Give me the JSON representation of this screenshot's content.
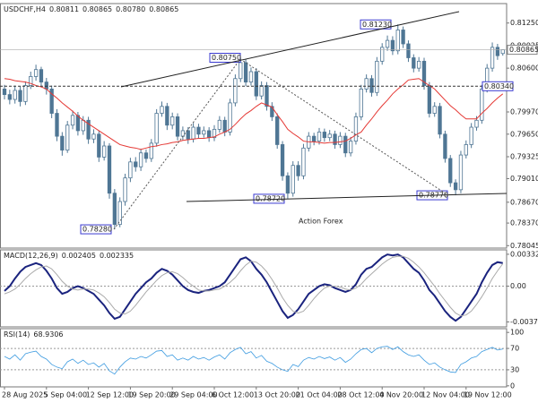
{
  "time_axis": {
    "categories": [
      "28 Aug 2025",
      null,
      null,
      null,
      null,
      null,
      null,
      null,
      "5 Sep 04:00",
      null,
      null,
      null,
      null,
      null,
      null,
      null,
      "12 Sep 12:00",
      null,
      null,
      null,
      null,
      null,
      null,
      null,
      "19 Sep 20:00",
      null,
      null,
      null,
      null,
      null,
      null,
      null,
      "29 Sep 04:00",
      null,
      null,
      null,
      null,
      null,
      null,
      null,
      "6 Oct 12:00",
      null,
      null,
      null,
      null,
      null,
      null,
      null,
      "13 Oct 20:00",
      null,
      null,
      null,
      null,
      null,
      null,
      null,
      "21 Oct 04:00",
      null,
      null,
      null,
      null,
      null,
      null,
      null,
      "28 Oct 12:00",
      null,
      null,
      null,
      null,
      null,
      null,
      null,
      "4 Nov 20:00",
      null,
      null,
      null,
      null,
      null,
      null,
      null,
      "12 Nov 04:00",
      null,
      null,
      null,
      null,
      null,
      null,
      null,
      "19 Nov 12:00",
      null,
      null,
      null,
      null,
      null,
      null,
      null
    ]
  },
  "chart_data": [
    {
      "type": "candlestick",
      "title": "USDCHF,H4",
      "header_values": [
        "0.80811",
        "0.80865",
        "0.80780",
        "0.80865"
      ],
      "watermark": "Action Forex",
      "color": "#4f7694",
      "ylim": [
        0.7801,
        0.8153
      ],
      "yticks": [
        {
          "value": 0.8125,
          "label": "0.81250"
        },
        0.80925,
        {
          "value": 0.806,
          "label": "0.80600"
        },
        {
          "value": 0.7997,
          "label": "0.79970"
        },
        {
          "value": 0.7965,
          "label": "0.79650"
        },
        0.79325,
        {
          "value": 0.7901,
          "label": "0.79010"
        },
        {
          "value": 0.7867,
          "label": "0.78670"
        },
        {
          "value": 0.7837,
          "label": "0.78370"
        },
        0.78045
      ],
      "open": [
        0.803,
        0.8022,
        0.8015,
        0.8028,
        0.8012,
        0.8035,
        0.8048,
        0.8058,
        0.804,
        0.803,
        0.7995,
        0.7962,
        0.7942,
        0.7978,
        0.7992,
        0.797,
        0.7985,
        0.7958,
        0.7965,
        0.7932,
        0.7948,
        0.788,
        0.7835,
        0.7868,
        0.7902,
        0.7925,
        0.7918,
        0.7938,
        0.793,
        0.7952,
        0.7995,
        0.8005,
        0.7978,
        0.799,
        0.7962,
        0.797,
        0.7958,
        0.7975,
        0.7965,
        0.797,
        0.796,
        0.7972,
        0.7985,
        0.7968,
        0.801,
        0.8045,
        0.8068,
        0.804,
        0.8055,
        0.802,
        0.8035,
        0.8005,
        0.799,
        0.795,
        0.7905,
        0.788,
        0.792,
        0.7905,
        0.7945,
        0.7962,
        0.7955,
        0.7968,
        0.796,
        0.7965,
        0.795,
        0.7962,
        0.7938,
        0.7955,
        0.799,
        0.803,
        0.8045,
        0.8025,
        0.807,
        0.809,
        0.81,
        0.8085,
        0.8115,
        0.8095,
        0.8075,
        0.806,
        0.807,
        0.8035,
        0.7995,
        0.8005,
        0.7965,
        0.793,
        0.7895,
        0.7885,
        0.7935,
        0.795,
        0.7975,
        0.7985,
        0.803,
        0.806,
        0.809,
        0.80811
      ],
      "high": [
        0.8036,
        0.8029,
        0.8035,
        0.8034,
        0.8041,
        0.8055,
        0.8065,
        0.8062,
        0.8046,
        0.8035,
        0.8001,
        0.7968,
        0.7984,
        0.7999,
        0.7997,
        0.7991,
        0.799,
        0.7972,
        0.797,
        0.7955,
        0.7952,
        0.7886,
        0.7874,
        0.7908,
        0.7931,
        0.7932,
        0.7944,
        0.7943,
        0.7958,
        0.8001,
        0.8012,
        0.801,
        0.7996,
        0.7995,
        0.7976,
        0.7975,
        0.7981,
        0.798,
        0.7976,
        0.7975,
        0.7978,
        0.7991,
        0.799,
        0.8016,
        0.8051,
        0.8075,
        0.8073,
        0.8061,
        0.806,
        0.8041,
        0.804,
        0.8011,
        0.7995,
        0.7955,
        0.791,
        0.7926,
        0.7926,
        0.7951,
        0.7968,
        0.7967,
        0.7974,
        0.7973,
        0.7971,
        0.797,
        0.7968,
        0.7967,
        0.7961,
        0.7996,
        0.8036,
        0.8051,
        0.805,
        0.8076,
        0.8096,
        0.8107,
        0.8106,
        0.8123,
        0.812,
        0.81,
        0.808,
        0.8076,
        0.8075,
        0.804,
        0.8011,
        0.801,
        0.797,
        0.7935,
        0.79,
        0.7941,
        0.7956,
        0.7981,
        0.7991,
        0.8036,
        0.8066,
        0.8097,
        0.8095,
        0.80865
      ],
      "low": [
        0.8015,
        0.8008,
        0.8009,
        0.8005,
        0.8007,
        0.803,
        0.8042,
        0.8033,
        0.8022,
        0.7988,
        0.7955,
        0.7934,
        0.7938,
        0.7972,
        0.7963,
        0.7964,
        0.7951,
        0.7952,
        0.7925,
        0.7927,
        0.7872,
        0.7828,
        0.7831,
        0.7862,
        0.7896,
        0.7911,
        0.7912,
        0.7924,
        0.7925,
        0.7947,
        0.799,
        0.7971,
        0.7972,
        0.7956,
        0.7956,
        0.7951,
        0.7953,
        0.7959,
        0.796,
        0.7954,
        0.7955,
        0.7967,
        0.7962,
        0.7963,
        0.8005,
        0.804,
        0.8034,
        0.8035,
        0.8014,
        0.8015,
        0.7999,
        0.7984,
        0.7944,
        0.7898,
        0.7872,
        0.7875,
        0.7898,
        0.79,
        0.794,
        0.7949,
        0.795,
        0.7954,
        0.7955,
        0.7944,
        0.7945,
        0.7932,
        0.7933,
        0.795,
        0.7985,
        0.8025,
        0.8019,
        0.802,
        0.8065,
        0.8085,
        0.8079,
        0.808,
        0.8089,
        0.8069,
        0.8054,
        0.8055,
        0.8029,
        0.7989,
        0.799,
        0.7959,
        0.7924,
        0.7889,
        0.7877,
        0.788,
        0.793,
        0.7945,
        0.797,
        0.798,
        0.8025,
        0.8055,
        0.8072,
        0.8078
      ],
      "close": [
        0.8022,
        0.8015,
        0.8028,
        0.8012,
        0.8035,
        0.8048,
        0.8058,
        0.804,
        0.803,
        0.7995,
        0.7962,
        0.7942,
        0.7978,
        0.7992,
        0.797,
        0.7985,
        0.7958,
        0.7965,
        0.7932,
        0.7948,
        0.788,
        0.7835,
        0.7868,
        0.7902,
        0.7925,
        0.7918,
        0.7938,
        0.793,
        0.7952,
        0.7995,
        0.8005,
        0.7978,
        0.799,
        0.7962,
        0.797,
        0.7958,
        0.7975,
        0.7965,
        0.797,
        0.796,
        0.7972,
        0.7985,
        0.7968,
        0.801,
        0.8045,
        0.8068,
        0.804,
        0.8055,
        0.802,
        0.8035,
        0.8005,
        0.799,
        0.795,
        0.7905,
        0.788,
        0.792,
        0.7905,
        0.7945,
        0.7962,
        0.7955,
        0.7968,
        0.796,
        0.7965,
        0.795,
        0.7962,
        0.7938,
        0.7955,
        0.799,
        0.803,
        0.8045,
        0.8025,
        0.807,
        0.809,
        0.81,
        0.8085,
        0.8115,
        0.8095,
        0.8075,
        0.806,
        0.807,
        0.8035,
        0.7995,
        0.8005,
        0.7965,
        0.793,
        0.7895,
        0.7885,
        0.7935,
        0.795,
        0.7975,
        0.7985,
        0.803,
        0.806,
        0.809,
        0.8078,
        0.80865
      ],
      "ma": {
        "color": "#e53935",
        "values": [
          0.8045,
          0.8044,
          0.8042,
          0.8041,
          0.804,
          0.8038,
          0.8035,
          0.8033,
          0.803,
          0.8023,
          0.8017,
          0.801,
          0.8004,
          0.7998,
          0.7991,
          0.7985,
          0.798,
          0.7975,
          0.797,
          0.7965,
          0.796,
          0.7955,
          0.795,
          0.7948,
          0.7946,
          0.7945,
          0.7943,
          0.7945,
          0.7947,
          0.7948,
          0.795,
          0.7951,
          0.7953,
          0.7954,
          0.7956,
          0.7957,
          0.7958,
          0.7959,
          0.7959,
          0.796,
          0.7961,
          0.7965,
          0.7968,
          0.7972,
          0.7979,
          0.7987,
          0.7994,
          0.7999,
          0.8005,
          0.801,
          0.8007,
          0.8004,
          0.7993,
          0.7983,
          0.7972,
          0.7966,
          0.7961,
          0.7955,
          0.7954,
          0.7954,
          0.7953,
          0.7952,
          0.7953,
          0.7953,
          0.7954,
          0.7955,
          0.7959,
          0.7964,
          0.7968,
          0.7978,
          0.7987,
          0.7997,
          0.8006,
          0.8014,
          0.8023,
          0.803,
          0.8036,
          0.8043,
          0.8044,
          0.8045,
          0.804,
          0.8035,
          0.803,
          0.8022,
          0.8014,
          0.8006,
          0.8,
          0.7993,
          0.7987,
          0.7987,
          0.7987,
          0.7995,
          0.8002,
          0.801,
          0.8017,
          0.8023
        ]
      },
      "annotations": [
        {
          "value": 0.8075,
          "label": "0.80750"
        },
        {
          "value": 0.8123,
          "label": "0.81230"
        },
        {
          "value": 0.7828,
          "label": "0.78280"
        },
        {
          "value": 0.7872,
          "label": "0.78720"
        },
        {
          "value": 0.7877,
          "label": "0.78770"
        }
      ],
      "level": {
        "value": 0.8034,
        "label": "0.80340"
      },
      "current_price": {
        "value": 0.80865,
        "label": "0.80865"
      }
    },
    {
      "type": "macd",
      "title": "MACD(12,26,9)",
      "ylim": [
        -0.00424,
        0.00378
      ],
      "yticks": [
        0.003321,
        {
          "value": 0,
          "label": "0.00"
        },
        -0.003723
      ],
      "levels": [
        0
      ],
      "series": [
        {
          "color": "#1a237e",
          "values": [
            -0.0005,
            0.0,
            0.0008,
            0.0015,
            0.002,
            0.0022,
            0.0024,
            0.0022,
            0.0016,
            0.0008,
            -0.0002,
            -0.0008,
            -0.0006,
            -0.0002,
            0.0,
            -0.0002,
            -0.0005,
            -0.0008,
            -0.0014,
            -0.002,
            -0.0028,
            -0.0034,
            -0.0032,
            -0.0024,
            -0.0016,
            -0.0008,
            -0.0002,
            0.0004,
            0.0008,
            0.0014,
            0.0018,
            0.0016,
            0.0012,
            0.0006,
            0.0,
            -0.0004,
            -0.0006,
            -0.0007,
            -0.0005,
            -0.0004,
            -0.0002,
            0.0,
            0.0004,
            0.0012,
            0.002,
            0.0028,
            0.003,
            0.0026,
            0.0018,
            0.0012,
            0.0004,
            -0.0006,
            -0.0016,
            -0.0026,
            -0.0033,
            -0.003,
            -0.0024,
            -0.0016,
            -0.0008,
            -0.0004,
            0.0,
            0.0002,
            0.0001,
            -0.0002,
            -0.0004,
            -0.0006,
            -0.0004,
            0.0002,
            0.0012,
            0.0018,
            0.002,
            0.0025,
            0.003,
            0.0033,
            0.0032,
            0.0033,
            0.003,
            0.0024,
            0.0018,
            0.0014,
            0.0006,
            -0.0004,
            -0.001,
            -0.0018,
            -0.0026,
            -0.0032,
            -0.0036,
            -0.0032,
            -0.0024,
            -0.0016,
            -0.0008,
            0.0004,
            0.0014,
            0.0022,
            0.0025,
            0.002405
          ]
        },
        {
          "color": "#aaaaaa",
          "values": [
            -0.0008,
            -0.0006,
            -0.0003,
            0.0002,
            0.0008,
            0.0013,
            0.0017,
            0.002,
            0.0021,
            0.0018,
            0.0012,
            0.0005,
            0.0,
            -0.0003,
            -0.0004,
            -0.0003,
            -0.0003,
            -0.0004,
            -0.0007,
            -0.0011,
            -0.0017,
            -0.0024,
            -0.0028,
            -0.0029,
            -0.0026,
            -0.002,
            -0.0013,
            -0.0006,
            0.0,
            0.0006,
            0.0011,
            0.0014,
            0.0015,
            0.0013,
            0.0009,
            0.0004,
            0.0,
            -0.0004,
            -0.0005,
            -0.0005,
            -0.0004,
            -0.0003,
            0.0,
            0.0004,
            0.0009,
            0.0016,
            0.0022,
            0.0026,
            0.0025,
            0.0021,
            0.0015,
            0.0007,
            -0.0002,
            -0.0012,
            -0.002,
            -0.0026,
            -0.0028,
            -0.0026,
            -0.002,
            -0.0013,
            -0.0007,
            -0.0002,
            0.0,
            0.0,
            -0.0001,
            -0.0003,
            -0.0004,
            -0.0002,
            0.0002,
            0.0008,
            0.0013,
            0.0018,
            0.0023,
            0.0027,
            0.003,
            0.0031,
            0.0031,
            0.0029,
            0.0025,
            0.002,
            0.0014,
            0.0007,
            0.0,
            -0.0008,
            -0.0015,
            -0.0022,
            -0.0028,
            -0.0031,
            -0.003,
            -0.0026,
            -0.0019,
            -0.0011,
            -0.0002,
            0.0008,
            0.0016,
            0.002335
          ]
        }
      ]
    },
    {
      "type": "rsi",
      "title": "RSI(14)",
      "ylim": [
        -2,
        107
      ],
      "yticks": [
        100,
        70,
        30,
        0
      ],
      "levels": [
        70,
        30
      ],
      "series": [
        {
          "color": "#3d9be0",
          "values": [
            55,
            50,
            58,
            48,
            60,
            63,
            65,
            55,
            50,
            40,
            35,
            32,
            45,
            50,
            42,
            48,
            40,
            43,
            35,
            42,
            28,
            22,
            35,
            45,
            52,
            50,
            55,
            52,
            58,
            65,
            66,
            55,
            58,
            48,
            52,
            48,
            55,
            50,
            53,
            48,
            54,
            58,
            50,
            62,
            68,
            72,
            60,
            64,
            52,
            57,
            46,
            42,
            35,
            30,
            27,
            40,
            36,
            48,
            53,
            50,
            55,
            51,
            54,
            48,
            53,
            44,
            50,
            60,
            68,
            70,
            62,
            70,
            73,
            74,
            68,
            73,
            64,
            58,
            55,
            58,
            48,
            40,
            43,
            35,
            30,
            26,
            25,
            40,
            45,
            52,
            55,
            64,
            68,
            72,
            67,
            68.9306
          ]
        }
      ]
    }
  ]
}
